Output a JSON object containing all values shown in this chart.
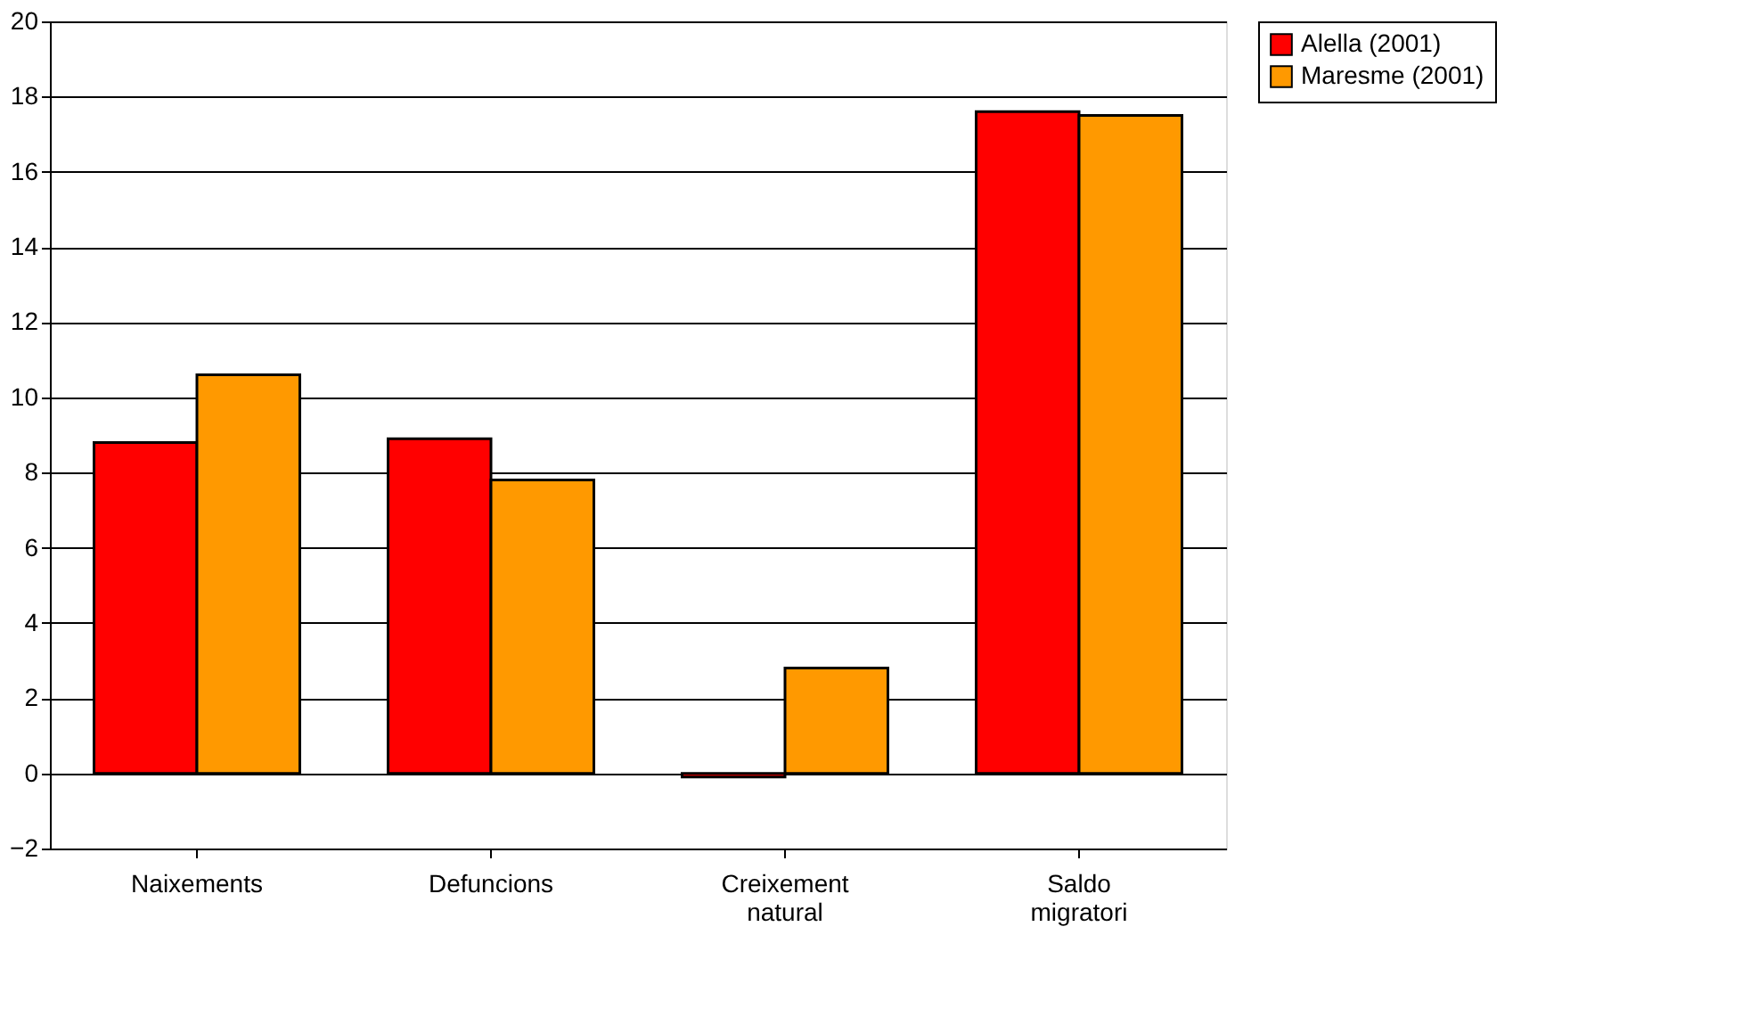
{
  "chart_data": {
    "type": "bar",
    "categories": [
      "Naixements",
      "Defuncions",
      "Creixement natural",
      "Saldo migratori"
    ],
    "series": [
      {
        "name": "Alella (2001)",
        "color": "#ff0000",
        "values": [
          8.8,
          8.9,
          -0.1,
          17.6
        ]
      },
      {
        "name": "Maresme (2001)",
        "color": "#ff9900",
        "values": [
          10.6,
          7.8,
          2.8,
          17.5
        ]
      }
    ],
    "ylim": [
      -2,
      20
    ],
    "yticks": [
      -2,
      0,
      2,
      4,
      6,
      8,
      10,
      12,
      14,
      16,
      18,
      20
    ],
    "grid": "y",
    "legend": "right"
  }
}
